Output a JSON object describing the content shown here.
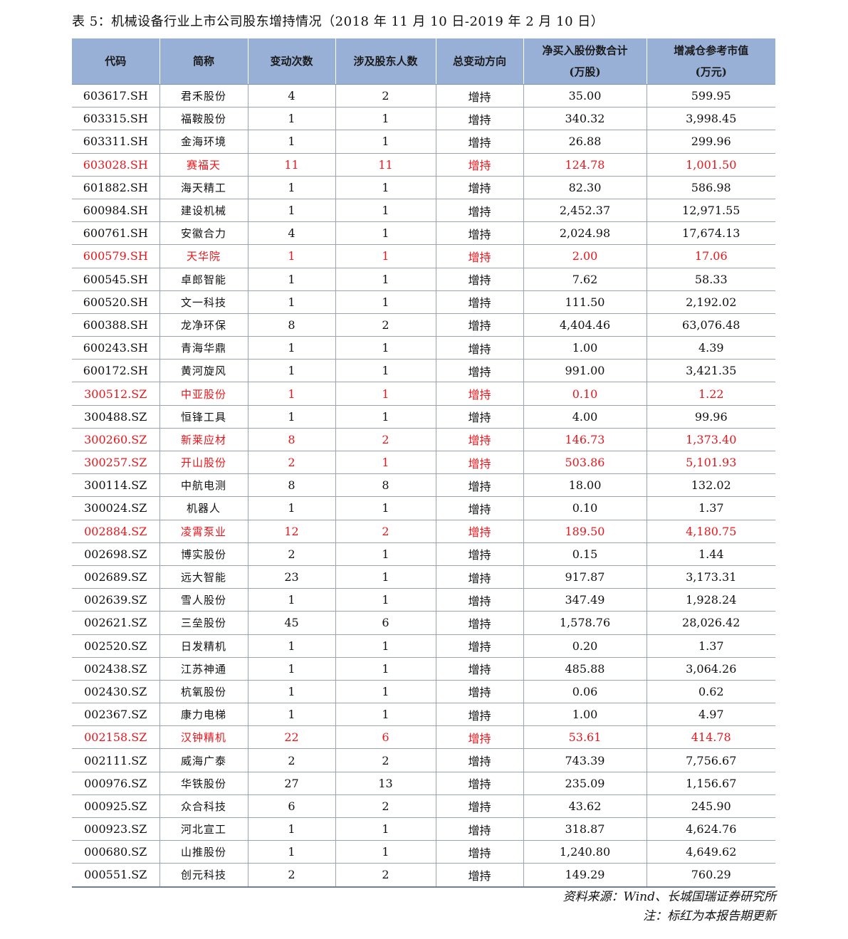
{
  "title": "表 5：机械设备行业上市公司股东增持情况（2018 年 11 月 10 日-2019 年 2 月 10 日）",
  "columns": [
    {
      "line1": "代码",
      "line2": ""
    },
    {
      "line1": "简称",
      "line2": ""
    },
    {
      "line1": "变动次数",
      "line2": ""
    },
    {
      "line1": "涉及股东人数",
      "line2": ""
    },
    {
      "line1": "总变动方向",
      "line2": ""
    },
    {
      "line1": "净买入股份数合计",
      "line2": "(万股)"
    },
    {
      "line1": "增减仓参考市值",
      "line2": "(万元)"
    }
  ],
  "rows": [
    {
      "code": "603617.SH",
      "name": "君禾股份",
      "changes": "4",
      "holders": "2",
      "direction": "增持",
      "shares": "35.00",
      "value": "599.95",
      "highlight": false
    },
    {
      "code": "603315.SH",
      "name": "福鞍股份",
      "changes": "1",
      "holders": "1",
      "direction": "增持",
      "shares": "340.32",
      "value": "3,998.45",
      "highlight": false
    },
    {
      "code": "603311.SH",
      "name": "金海环境",
      "changes": "1",
      "holders": "1",
      "direction": "增持",
      "shares": "26.88",
      "value": "299.96",
      "highlight": false
    },
    {
      "code": "603028.SH",
      "name": "赛福天",
      "changes": "11",
      "holders": "11",
      "direction": "增持",
      "shares": "124.78",
      "value": "1,001.50",
      "highlight": true
    },
    {
      "code": "601882.SH",
      "name": "海天精工",
      "changes": "1",
      "holders": "1",
      "direction": "增持",
      "shares": "82.30",
      "value": "586.98",
      "highlight": false
    },
    {
      "code": "600984.SH",
      "name": "建设机械",
      "changes": "1",
      "holders": "1",
      "direction": "增持",
      "shares": "2,452.37",
      "value": "12,971.55",
      "highlight": false
    },
    {
      "code": "600761.SH",
      "name": "安徽合力",
      "changes": "4",
      "holders": "1",
      "direction": "增持",
      "shares": "2,024.98",
      "value": "17,674.13",
      "highlight": false
    },
    {
      "code": "600579.SH",
      "name": "天华院",
      "changes": "1",
      "holders": "1",
      "direction": "增持",
      "shares": "2.00",
      "value": "17.06",
      "highlight": true
    },
    {
      "code": "600545.SH",
      "name": "卓郎智能",
      "changes": "1",
      "holders": "1",
      "direction": "增持",
      "shares": "7.62",
      "value": "58.33",
      "highlight": false
    },
    {
      "code": "600520.SH",
      "name": "文一科技",
      "changes": "1",
      "holders": "1",
      "direction": "增持",
      "shares": "111.50",
      "value": "2,192.02",
      "highlight": false
    },
    {
      "code": "600388.SH",
      "name": "龙净环保",
      "changes": "8",
      "holders": "2",
      "direction": "增持",
      "shares": "4,404.46",
      "value": "63,076.48",
      "highlight": false
    },
    {
      "code": "600243.SH",
      "name": "青海华鼎",
      "changes": "1",
      "holders": "1",
      "direction": "增持",
      "shares": "1.00",
      "value": "4.39",
      "highlight": false
    },
    {
      "code": "600172.SH",
      "name": "黄河旋风",
      "changes": "1",
      "holders": "1",
      "direction": "增持",
      "shares": "991.00",
      "value": "3,421.35",
      "highlight": false
    },
    {
      "code": "300512.SZ",
      "name": "中亚股份",
      "changes": "1",
      "holders": "1",
      "direction": "增持",
      "shares": "0.10",
      "value": "1.22",
      "highlight": true
    },
    {
      "code": "300488.SZ",
      "name": "恒锋工具",
      "changes": "1",
      "holders": "1",
      "direction": "增持",
      "shares": "4.00",
      "value": "99.96",
      "highlight": false
    },
    {
      "code": "300260.SZ",
      "name": "新莱应材",
      "changes": "8",
      "holders": "2",
      "direction": "增持",
      "shares": "146.73",
      "value": "1,373.40",
      "highlight": true
    },
    {
      "code": "300257.SZ",
      "name": "开山股份",
      "changes": "2",
      "holders": "1",
      "direction": "增持",
      "shares": "503.86",
      "value": "5,101.93",
      "highlight": true
    },
    {
      "code": "300114.SZ",
      "name": "中航电测",
      "changes": "8",
      "holders": "8",
      "direction": "增持",
      "shares": "18.00",
      "value": "132.02",
      "highlight": false
    },
    {
      "code": "300024.SZ",
      "name": "机器人",
      "changes": "1",
      "holders": "1",
      "direction": "增持",
      "shares": "0.10",
      "value": "1.37",
      "highlight": false
    },
    {
      "code": "002884.SZ",
      "name": "凌霄泵业",
      "changes": "12",
      "holders": "2",
      "direction": "增持",
      "shares": "189.50",
      "value": "4,180.75",
      "highlight": true
    },
    {
      "code": "002698.SZ",
      "name": "博实股份",
      "changes": "2",
      "holders": "1",
      "direction": "增持",
      "shares": "0.15",
      "value": "1.44",
      "highlight": false
    },
    {
      "code": "002689.SZ",
      "name": "远大智能",
      "changes": "23",
      "holders": "1",
      "direction": "增持",
      "shares": "917.87",
      "value": "3,173.31",
      "highlight": false
    },
    {
      "code": "002639.SZ",
      "name": "雪人股份",
      "changes": "1",
      "holders": "1",
      "direction": "增持",
      "shares": "347.49",
      "value": "1,928.24",
      "highlight": false
    },
    {
      "code": "002621.SZ",
      "name": "三垒股份",
      "changes": "45",
      "holders": "6",
      "direction": "增持",
      "shares": "1,578.76",
      "value": "28,026.42",
      "highlight": false
    },
    {
      "code": "002520.SZ",
      "name": "日发精机",
      "changes": "1",
      "holders": "1",
      "direction": "增持",
      "shares": "0.20",
      "value": "1.37",
      "highlight": false
    },
    {
      "code": "002438.SZ",
      "name": "江苏神通",
      "changes": "1",
      "holders": "1",
      "direction": "增持",
      "shares": "485.88",
      "value": "3,064.26",
      "highlight": false
    },
    {
      "code": "002430.SZ",
      "name": "杭氧股份",
      "changes": "1",
      "holders": "1",
      "direction": "增持",
      "shares": "0.06",
      "value": "0.62",
      "highlight": false
    },
    {
      "code": "002367.SZ",
      "name": "康力电梯",
      "changes": "1",
      "holders": "1",
      "direction": "增持",
      "shares": "1.00",
      "value": "4.97",
      "highlight": false
    },
    {
      "code": "002158.SZ",
      "name": "汉钟精机",
      "changes": "22",
      "holders": "6",
      "direction": "增持",
      "shares": "53.61",
      "value": "414.78",
      "highlight": true
    },
    {
      "code": "002111.SZ",
      "name": "威海广泰",
      "changes": "2",
      "holders": "2",
      "direction": "增持",
      "shares": "743.39",
      "value": "7,756.67",
      "highlight": false
    },
    {
      "code": "000976.SZ",
      "name": "华铁股份",
      "changes": "27",
      "holders": "13",
      "direction": "增持",
      "shares": "235.09",
      "value": "1,156.67",
      "highlight": false
    },
    {
      "code": "000925.SZ",
      "name": "众合科技",
      "changes": "6",
      "holders": "2",
      "direction": "增持",
      "shares": "43.62",
      "value": "245.90",
      "highlight": false
    },
    {
      "code": "000923.SZ",
      "name": "河北宣工",
      "changes": "1",
      "holders": "1",
      "direction": "增持",
      "shares": "318.87",
      "value": "4,624.76",
      "highlight": false
    },
    {
      "code": "000680.SZ",
      "name": "山推股份",
      "changes": "1",
      "holders": "1",
      "direction": "增持",
      "shares": "1,240.80",
      "value": "4,649.62",
      "highlight": false
    },
    {
      "code": "000551.SZ",
      "name": "创元科技",
      "changes": "2",
      "holders": "2",
      "direction": "增持",
      "shares": "149.29",
      "value": "760.29",
      "highlight": false
    }
  ],
  "footnotes": {
    "source": "资料来源：Wind、长城国瑞证券研究所",
    "note": "注：标红为本报告期更新"
  },
  "colors": {
    "header_bg": "#98b0d6",
    "highlight": "#e8161b"
  }
}
